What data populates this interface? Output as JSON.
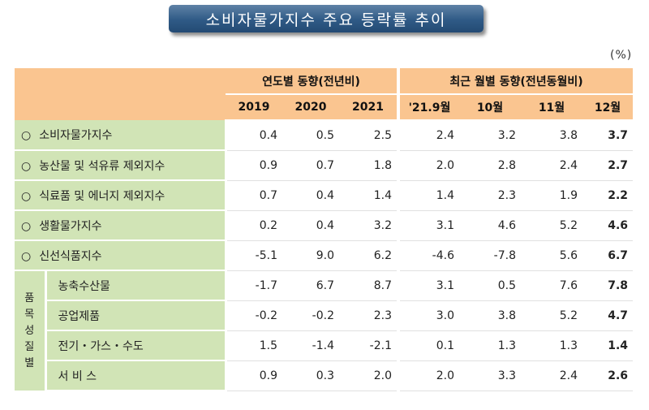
{
  "title": "소비자물가지수 주요 등락률 추이",
  "unit": "(%)",
  "header": {
    "annual_group": "연도별 동향(전년비)",
    "monthly_group": "최근 월별 동향(전년동월비)",
    "columns": [
      "2019",
      "2020",
      "2021",
      "'21.9월",
      "10월",
      "11월",
      "12월"
    ]
  },
  "bullet": "○",
  "side_group": [
    "품",
    "목",
    "성",
    "질",
    "별"
  ],
  "rows": [
    {
      "label": "소비자물가지수",
      "values": [
        "0.4",
        "0.5",
        "2.5",
        "2.4",
        "3.2",
        "3.8",
        "3.7"
      ]
    },
    {
      "label": "농산물 및 석유류 제외지수",
      "values": [
        "0.9",
        "0.7",
        "1.8",
        "2.0",
        "2.8",
        "2.4",
        "2.7"
      ]
    },
    {
      "label": "식료품 및 에너지 제외지수",
      "values": [
        "0.7",
        "0.4",
        "1.4",
        "1.4",
        "2.3",
        "1.9",
        "2.2"
      ]
    },
    {
      "label": "생활물가지수",
      "values": [
        "0.2",
        "0.4",
        "3.2",
        "3.1",
        "4.6",
        "5.2",
        "4.6"
      ]
    },
    {
      "label": "신선식품지수",
      "values": [
        "-5.1",
        "9.0",
        "6.2",
        "-4.6",
        "-7.8",
        "5.6",
        "6.7"
      ]
    }
  ],
  "sub_rows": [
    {
      "label": "농축수산물",
      "values": [
        "-1.7",
        "6.7",
        "8.7",
        "3.1",
        "0.5",
        "7.6",
        "7.8"
      ]
    },
    {
      "label": "공업제품",
      "values": [
        "-0.2",
        "-0.2",
        "2.3",
        "3.0",
        "3.8",
        "5.2",
        "4.7"
      ]
    },
    {
      "label": "전기・가스・수도",
      "values": [
        "1.5",
        "-1.4",
        "-2.1",
        "0.1",
        "1.3",
        "1.3",
        "1.4"
      ]
    },
    {
      "label": "서 비 스",
      "values": [
        "0.9",
        "0.3",
        "2.0",
        "2.0",
        "3.3",
        "2.4",
        "2.6"
      ]
    }
  ]
}
